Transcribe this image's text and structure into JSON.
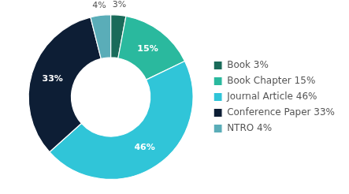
{
  "chart_data": {
    "type": "doughnut",
    "categories": [
      "Book 3%",
      "Book Chapter 15%",
      "Journal Article 46%",
      "Conference Paper 33%",
      "NTRO 4%"
    ],
    "values": [
      3,
      15,
      46,
      33,
      4
    ],
    "value_labels": [
      "3%",
      "15%",
      "46%",
      "33%",
      "4%"
    ],
    "colors": [
      "#1a6b5a",
      "#2ab99e",
      "#30c5d8",
      "#0d1e35",
      "#5aadb8"
    ],
    "data_labels": true,
    "legend": "right"
  }
}
